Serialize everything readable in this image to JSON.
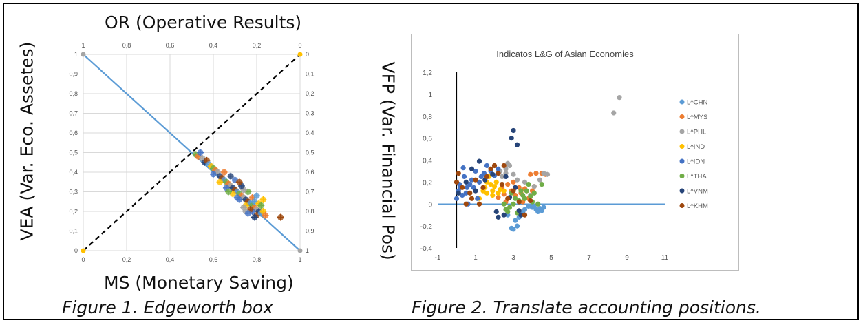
{
  "figure1": {
    "top_axis_label": "OR (Operative Results)",
    "left_axis_label": "VEA (Var. Eco. Assetes)",
    "bottom_axis_label": "MS (Monetary Saving)",
    "caption": "Figure 1. Edgeworth box"
  },
  "figure2": {
    "left_axis_label": "VFP (Var. Financial Pos)",
    "caption": "Figure 2. Translate accounting positions."
  },
  "chart_data": [
    {
      "type": "scatter",
      "title": "",
      "xlabel": "MS (Monetary Saving)",
      "ylabel": "VEA (Var. Eco. Assetes)",
      "top_axis_label": "OR (Operative Results)",
      "xlim": [
        0,
        1
      ],
      "ylim": [
        0,
        1
      ],
      "x_ticks": [
        "0",
        "0,2",
        "0,4",
        "0,6",
        "0,8",
        "1"
      ],
      "y_ticks": [
        "0",
        "0,1",
        "0,2",
        "0,3",
        "0,4",
        "0,5",
        "0,6",
        "0,7",
        "0,8",
        "0,9",
        "1"
      ],
      "top_ticks": [
        "1",
        "0,8",
        "0,6",
        "0,4",
        "0,2",
        "0"
      ],
      "right_ticks": [
        "0",
        "0,1",
        "0,2",
        "0,3",
        "0,4",
        "0,5",
        "0,6",
        "0,7",
        "0,8",
        "0,9",
        "1"
      ],
      "grid": true,
      "lines": [
        {
          "style": "solid",
          "color": "#5b9bd5",
          "x": [
            0,
            1
          ],
          "y": [
            1,
            0
          ]
        },
        {
          "style": "dashed",
          "color": "#000000",
          "x": [
            0,
            1
          ],
          "y": [
            0,
            1
          ]
        }
      ],
      "corner_points": [
        {
          "x": 0,
          "y": 1,
          "color": "#a5a5a5"
        },
        {
          "x": 0,
          "y": 0,
          "color": "#ffc000"
        },
        {
          "x": 1,
          "y": 1,
          "color": "#ffc000"
        },
        {
          "x": 1,
          "y": 0,
          "color": "#a5a5a5"
        }
      ],
      "cloud_colors": [
        "#70ad47",
        "#ed7d31",
        "#a5a5a5",
        "#4472c4",
        "#264478",
        "#9e480e",
        "#5b9bd5",
        "#ffc000"
      ],
      "points": [
        [
          0.52,
          0.49
        ],
        [
          0.53,
          0.48
        ],
        [
          0.55,
          0.47
        ],
        [
          0.54,
          0.5
        ],
        [
          0.56,
          0.45
        ],
        [
          0.57,
          0.46
        ],
        [
          0.58,
          0.44
        ],
        [
          0.59,
          0.43
        ],
        [
          0.6,
          0.42
        ],
        [
          0.61,
          0.41
        ],
        [
          0.62,
          0.4
        ],
        [
          0.6,
          0.39
        ],
        [
          0.63,
          0.38
        ],
        [
          0.64,
          0.37
        ],
        [
          0.65,
          0.36
        ],
        [
          0.63,
          0.35
        ],
        [
          0.66,
          0.35
        ],
        [
          0.67,
          0.34
        ],
        [
          0.68,
          0.33
        ],
        [
          0.66,
          0.32
        ],
        [
          0.69,
          0.32
        ],
        [
          0.7,
          0.31
        ],
        [
          0.71,
          0.3
        ],
        [
          0.69,
          0.29
        ],
        [
          0.72,
          0.29
        ],
        [
          0.73,
          0.28
        ],
        [
          0.74,
          0.27
        ],
        [
          0.72,
          0.26
        ],
        [
          0.75,
          0.26
        ],
        [
          0.76,
          0.25
        ],
        [
          0.77,
          0.24
        ],
        [
          0.75,
          0.23
        ],
        [
          0.78,
          0.23
        ],
        [
          0.79,
          0.22
        ],
        [
          0.8,
          0.21
        ],
        [
          0.78,
          0.2
        ],
        [
          0.81,
          0.2
        ],
        [
          0.8,
          0.18
        ],
        [
          0.82,
          0.19
        ],
        [
          0.83,
          0.2
        ],
        [
          0.76,
          0.3
        ],
        [
          0.78,
          0.27
        ],
        [
          0.74,
          0.31
        ],
        [
          0.7,
          0.36
        ],
        [
          0.73,
          0.33
        ],
        [
          0.77,
          0.21
        ],
        [
          0.79,
          0.25
        ],
        [
          0.81,
          0.24
        ],
        [
          0.82,
          0.23
        ],
        [
          0.84,
          0.18
        ],
        [
          0.75,
          0.2
        ],
        [
          0.71,
          0.27
        ],
        [
          0.68,
          0.38
        ],
        [
          0.72,
          0.35
        ],
        [
          0.8,
          0.28
        ],
        [
          0.83,
          0.26
        ],
        [
          0.67,
          0.3
        ],
        [
          0.65,
          0.4
        ],
        [
          0.74,
          0.22
        ],
        [
          0.76,
          0.19
        ],
        [
          0.79,
          0.17
        ],
        [
          0.91,
          0.17
        ]
      ]
    },
    {
      "type": "scatter",
      "title": "Indicatos L&G of Asian Economies",
      "xlabel": "",
      "ylabel": "VFP (Var. Financial Pos)",
      "xlim": [
        -1,
        11
      ],
      "ylim": [
        -0.4,
        1.2
      ],
      "x_ticks": [
        "-1",
        "1",
        "3",
        "5",
        "7",
        "9",
        "11"
      ],
      "y_ticks": [
        "-0,4",
        "-0,2",
        "0",
        "0,2",
        "0,4",
        "0,6",
        "0,8",
        "1",
        "1,2"
      ],
      "grid": false,
      "legend_position": "right",
      "reference_lines": [
        {
          "orientation": "horizontal",
          "value": 0,
          "color": "#5b9bd5"
        },
        {
          "orientation": "vertical",
          "value": 0,
          "color": "#000000"
        }
      ],
      "series": [
        {
          "name": "L^CHN",
          "color": "#5b9bd5",
          "points": [
            [
              2.9,
              -0.22
            ],
            [
              3.0,
              -0.23
            ],
            [
              3.2,
              -0.2
            ],
            [
              3.3,
              -0.12
            ],
            [
              3.5,
              -0.08
            ],
            [
              3.6,
              -0.05
            ],
            [
              4.0,
              -0.03
            ],
            [
              4.1,
              -0.02
            ],
            [
              4.2,
              -0.05
            ],
            [
              4.3,
              -0.07
            ],
            [
              4.4,
              -0.04
            ],
            [
              4.5,
              -0.06
            ],
            [
              4.6,
              -0.03
            ],
            [
              3.1,
              -0.15
            ],
            [
              2.7,
              -0.1
            ],
            [
              3.8,
              -0.02
            ]
          ]
        },
        {
          "name": "L^MYS",
          "color": "#ed7d31",
          "points": [
            [
              2.6,
              0.02
            ],
            [
              2.9,
              0.12
            ],
            [
              3.1,
              0.08
            ],
            [
              3.4,
              0.1
            ],
            [
              3.6,
              0.14
            ],
            [
              3.8,
              0.05
            ],
            [
              4.0,
              0.12
            ],
            [
              4.2,
              0.28
            ],
            [
              4.5,
              0.28
            ],
            [
              4.7,
              0.27
            ],
            [
              3.9,
              0.27
            ],
            [
              2.4,
              0.15
            ],
            [
              2.2,
              0.06
            ],
            [
              3.3,
              0.15
            ],
            [
              3.0,
              0.2
            ],
            [
              2.7,
              0.18
            ],
            [
              4.1,
              0.16
            ],
            [
              3.5,
              0.02
            ],
            [
              3.7,
              0.12
            ],
            [
              2.5,
              0.09
            ]
          ]
        },
        {
          "name": "L^PHL",
          "color": "#a5a5a5",
          "points": [
            [
              2.3,
              0.3
            ],
            [
              2.6,
              0.32
            ],
            [
              2.7,
              0.37
            ],
            [
              2.8,
              0.35
            ],
            [
              2.6,
              0.28
            ],
            [
              3.0,
              0.27
            ],
            [
              3.2,
              0.22
            ],
            [
              3.6,
              0.2
            ],
            [
              3.9,
              0.08
            ],
            [
              4.1,
              0.16
            ],
            [
              4.4,
              0.22
            ],
            [
              4.6,
              0.28
            ],
            [
              4.8,
              0.27
            ],
            [
              2.4,
              0.25
            ],
            [
              8.3,
              0.83
            ],
            [
              8.6,
              0.97
            ]
          ]
        },
        {
          "name": "L^IND",
          "color": "#ffc000",
          "points": [
            [
              1.5,
              0.15
            ],
            [
              1.6,
              0.2
            ],
            [
              1.8,
              0.18
            ],
            [
              1.9,
              0.12
            ],
            [
              2.0,
              0.16
            ],
            [
              2.2,
              0.1
            ],
            [
              1.7,
              0.25
            ],
            [
              1.4,
              0.12
            ],
            [
              2.1,
              0.2
            ],
            [
              1.9,
              0.08
            ],
            [
              2.3,
              0.13
            ],
            [
              1.6,
              0.1
            ],
            [
              1.2,
              0.05
            ],
            [
              2.5,
              0.12
            ]
          ]
        },
        {
          "name": "L^IDN",
          "color": "#4472c4",
          "points": [
            [
              0.0,
              0.05
            ],
            [
              0.1,
              0.12
            ],
            [
              0.2,
              0.15
            ],
            [
              0.3,
              0.08
            ],
            [
              0.4,
              0.25
            ],
            [
              0.5,
              0.1
            ],
            [
              0.6,
              0.0
            ],
            [
              0.7,
              0.18
            ],
            [
              0.8,
              0.22
            ],
            [
              0.9,
              0.15
            ],
            [
              1.0,
              0.3
            ],
            [
              1.1,
              0.05
            ],
            [
              1.2,
              0.2
            ],
            [
              1.3,
              0.25
            ],
            [
              1.6,
              0.35
            ],
            [
              1.8,
              0.3
            ],
            [
              2.0,
              0.26
            ],
            [
              0.35,
              0.33
            ],
            [
              0.15,
              0.18
            ],
            [
              0.55,
              0.15
            ],
            [
              1.45,
              0.28
            ],
            [
              2.2,
              0.32
            ]
          ]
        },
        {
          "name": "L^THA",
          "color": "#70ad47",
          "points": [
            [
              2.6,
              -0.05
            ],
            [
              2.8,
              -0.03
            ],
            [
              3.0,
              0.0
            ],
            [
              3.1,
              0.05
            ],
            [
              3.3,
              0.03
            ],
            [
              3.5,
              0.08
            ],
            [
              3.7,
              0.12
            ],
            [
              3.9,
              0.07
            ],
            [
              4.1,
              0.1
            ],
            [
              4.3,
              0.0
            ],
            [
              4.5,
              0.18
            ],
            [
              2.5,
              0.0
            ],
            [
              2.9,
              0.1
            ],
            [
              3.2,
              -0.08
            ],
            [
              3.4,
              0.12
            ],
            [
              3.6,
              0.05
            ],
            [
              4.0,
              0.02
            ],
            [
              2.7,
              -0.07
            ],
            [
              3.8,
              0.18
            ]
          ]
        },
        {
          "name": "L^VNM",
          "color": "#264478",
          "points": [
            [
              0.1,
              0.1
            ],
            [
              0.5,
              0.2
            ],
            [
              1.0,
              0.12
            ],
            [
              1.5,
              0.22
            ],
            [
              2.1,
              -0.07
            ],
            [
              2.2,
              -0.12
            ],
            [
              2.5,
              -0.1
            ],
            [
              2.9,
              0.6
            ],
            [
              3.0,
              0.67
            ],
            [
              3.2,
              0.54
            ],
            [
              3.3,
              -0.06
            ],
            [
              3.4,
              -0.1
            ],
            [
              2.8,
              0.06
            ],
            [
              1.9,
              0.27
            ],
            [
              3.1,
              0.15
            ],
            [
              2.6,
              0.25
            ],
            [
              1.2,
              0.39
            ],
            [
              0.8,
              0.32
            ]
          ]
        },
        {
          "name": "L^KHM",
          "color": "#9e480e",
          "points": [
            [
              0.0,
              0.2
            ],
            [
              0.1,
              0.28
            ],
            [
              0.3,
              0.15
            ],
            [
              0.5,
              0.0
            ],
            [
              0.8,
              0.05
            ],
            [
              1.0,
              0.22
            ],
            [
              1.2,
              0.0
            ],
            [
              1.4,
              0.15
            ],
            [
              1.6,
              0.25
            ],
            [
              1.8,
              0.32
            ],
            [
              2.0,
              0.35
            ],
            [
              2.2,
              0.28
            ],
            [
              2.4,
              0.18
            ],
            [
              2.7,
              0.05
            ],
            [
              3.0,
              0.12
            ],
            [
              3.3,
              0.02
            ],
            [
              3.6,
              -0.1
            ],
            [
              3.9,
              0.03
            ],
            [
              2.5,
              0.35
            ],
            [
              0.7,
              0.1
            ]
          ]
        }
      ]
    }
  ]
}
